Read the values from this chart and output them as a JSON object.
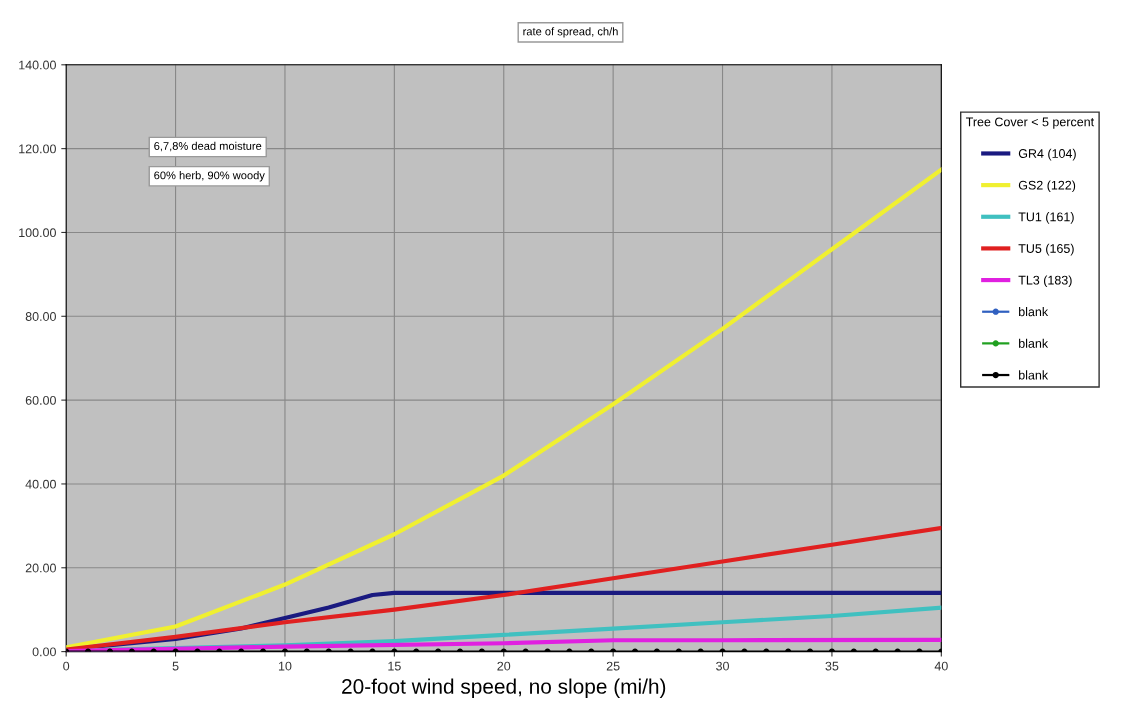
{
  "chart_data": {
    "type": "line",
    "xlabel": "20-foot wind speed, no slope (mi/h)",
    "legend_title": "Tree Cover < 5 percent",
    "annotations": [
      "rate of spread, ch/h",
      "6,7,8% dead moisture",
      "60% herb, 90% woody"
    ],
    "xlim": [
      0,
      40
    ],
    "xticks": [
      0,
      5,
      10,
      15,
      20,
      25,
      30,
      35,
      40
    ],
    "ylim": [
      0,
      140
    ],
    "yticks": [
      {
        "value": 0,
        "label": "0.00"
      },
      {
        "value": 20,
        "label": "20.00"
      },
      {
        "value": 40,
        "label": "40.00"
      },
      {
        "value": 60,
        "label": "60.00"
      },
      {
        "value": 80,
        "label": "80.00"
      },
      {
        "value": 100,
        "label": "100.00"
      },
      {
        "value": 120,
        "label": "120.00"
      },
      {
        "value": 140,
        "label": "140.00"
      }
    ],
    "grid": true,
    "legend": "right",
    "marker": "none",
    "series": [
      {
        "name": "GR4 (104)",
        "color": "#1a1a80",
        "x": [
          0,
          5,
          8,
          10,
          12,
          14,
          15,
          20,
          25,
          30,
          35,
          40
        ],
        "values": [
          0.5,
          3,
          5.5,
          8,
          10.5,
          13.5,
          14,
          14,
          14,
          14,
          14,
          14
        ]
      },
      {
        "name": "GS2 (122)",
        "color": "#f0f030",
        "x": [
          0,
          5,
          10,
          15,
          20,
          25,
          30,
          35,
          40
        ],
        "values": [
          1,
          6,
          16,
          28,
          42,
          59,
          77,
          96,
          115
        ]
      },
      {
        "name": "TU1 (161)",
        "color": "#40c0c0",
        "x": [
          0,
          10,
          15,
          20,
          25,
          30,
          35,
          40
        ],
        "values": [
          0.2,
          1.5,
          2.5,
          4,
          5.5,
          7,
          8.5,
          10.5
        ]
      },
      {
        "name": "TU5 (165)",
        "color": "#e02020",
        "x": [
          0,
          5,
          10,
          15,
          20,
          25,
          30,
          35,
          40
        ],
        "values": [
          0.5,
          3.5,
          7,
          10,
          13.5,
          17.5,
          21.5,
          25.5,
          29.5
        ]
      },
      {
        "name": "TL3 (183)",
        "color": "#e020e0",
        "x": [
          0,
          10,
          20,
          25,
          30,
          40
        ],
        "values": [
          0.1,
          1.2,
          2,
          2.7,
          2.7,
          2.8
        ]
      },
      {
        "name": "blank",
        "color": "#3060c0",
        "marker": "circle"
      },
      {
        "name": "blank",
        "color": "#20a020",
        "marker": "circle"
      },
      {
        "name": "blank",
        "color": "#000000",
        "marker": "circle",
        "x": [
          0,
          1,
          2,
          3,
          4,
          5,
          6,
          7,
          8,
          9,
          10,
          11,
          12,
          13,
          14,
          15,
          16,
          17,
          18,
          19,
          20,
          21,
          22,
          23,
          24,
          25,
          26,
          27,
          28,
          29,
          30,
          31,
          32,
          33,
          34,
          35,
          36,
          37,
          38,
          39,
          40
        ],
        "values": [
          0,
          0,
          0,
          0,
          0,
          0,
          0,
          0,
          0,
          0,
          0,
          0,
          0,
          0,
          0,
          0,
          0,
          0,
          0,
          0,
          0,
          0,
          0,
          0,
          0,
          0,
          0,
          0,
          0,
          0,
          0,
          0,
          0,
          0,
          0,
          0,
          0,
          0,
          0,
          0,
          0
        ]
      }
    ]
  }
}
